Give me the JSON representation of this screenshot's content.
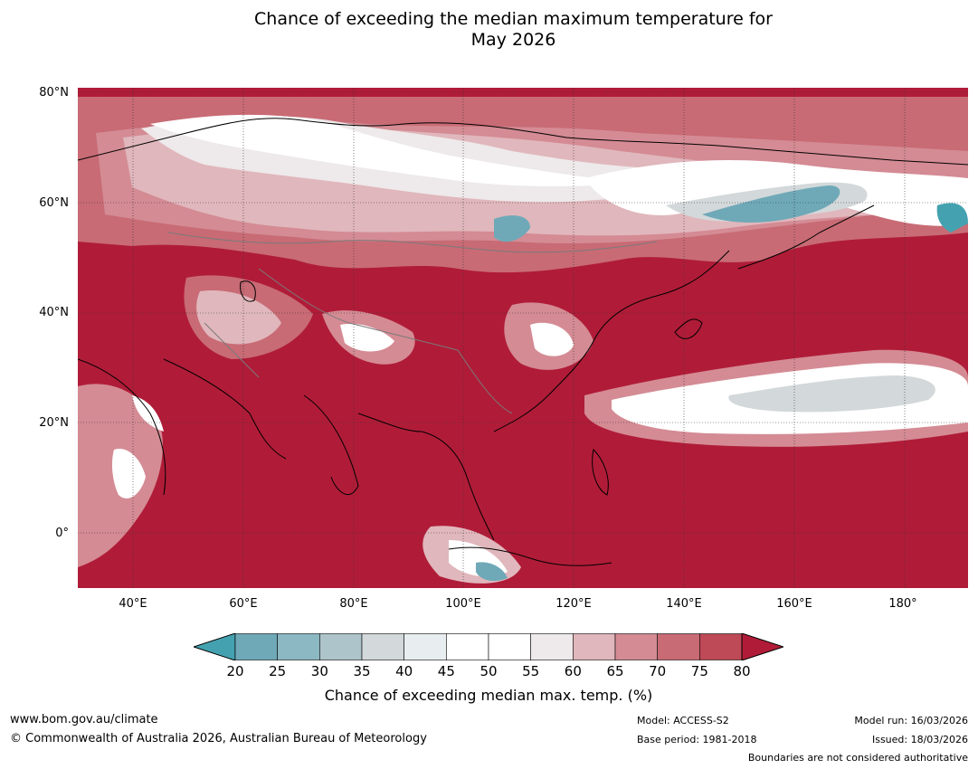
{
  "title": {
    "line1": "Chance of exceeding the median maximum temperature for",
    "line2": "May 2026"
  },
  "map": {
    "lat_labels": [
      "80°N",
      "60°N",
      "40°N",
      "20°N",
      "0°"
    ],
    "lon_labels": [
      "40°E",
      "60°E",
      "80°E",
      "100°E",
      "120°E",
      "140°E",
      "160°E",
      "180°"
    ]
  },
  "colorbar": {
    "ticks": [
      "20",
      "25",
      "30",
      "35",
      "40",
      "45",
      "50",
      "55",
      "60",
      "65",
      "70",
      "75",
      "80"
    ],
    "colors": [
      "#6fa9b8",
      "#8bb8c3",
      "#adc4ca",
      "#d3d8da",
      "#e8eef0",
      "#ffffff",
      "#ffffff",
      "#eee9ea",
      "#e0b7bc",
      "#d48b94",
      "#c86b75",
      "#bf4a57"
    ],
    "under_color": "#44a2b0",
    "over_color": "#b01c38",
    "label": "Chance of exceeding median max. temp. (%)"
  },
  "footer": {
    "website": "www.bom.gov.au/climate",
    "copyright": "© Commonwealth of Australia 2026, Australian Bureau of Meteorology",
    "model": "Model: ACCESS-S2",
    "base_period": "Base period: 1981-2018",
    "model_run": "Model run: 16/03/2026",
    "issued": "Issued: 18/03/2026",
    "disclaimer": "Boundaries are not considered authoritative"
  }
}
